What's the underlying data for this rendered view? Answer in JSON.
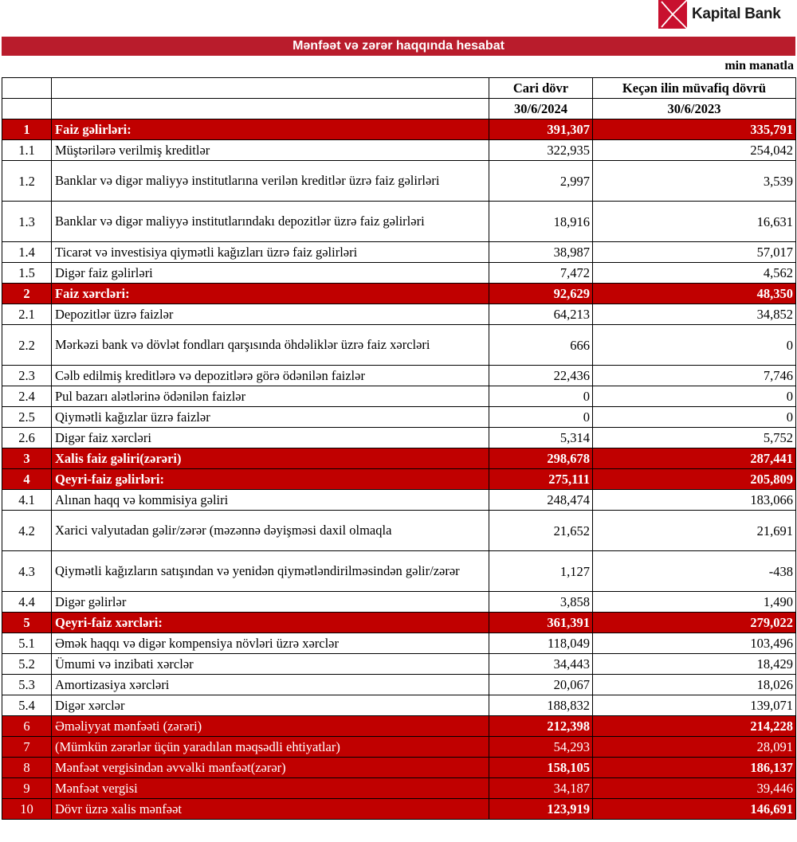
{
  "brand": {
    "name": "Kapital Bank",
    "color": "#c8102e"
  },
  "title": "Mənfəət və zərər haqqında hesabat",
  "unit": "min manatla",
  "columns": {
    "current": "Cari dövr",
    "previous": "Keçən ilin müvafiq dövrü",
    "current_date": "30/6/2024",
    "previous_date": "30/6/2023"
  },
  "colors": {
    "highlight_row": "#c00000",
    "title_bar": "#b91c2c"
  },
  "rows": [
    {
      "no": "1",
      "label": "Faiz gəlirləri:",
      "cur": "391,307",
      "prev": "335,791",
      "type": "section"
    },
    {
      "no": "1.1",
      "label": "Müştərilərə verilmiş kreditlər",
      "cur": "322,935",
      "prev": "254,042"
    },
    {
      "no": "1.2",
      "label": "Banklar və digər maliyyə institutlarına verilən kreditlər üzrə faiz gəlirləri",
      "cur": "2,997",
      "prev": "3,539",
      "double": true
    },
    {
      "no": "1.3",
      "label": "Banklar və digər maliyyə institutlarındakı depozitlər üzrə faiz gəlirləri",
      "cur": "18,916",
      "prev": "16,631",
      "double": true
    },
    {
      "no": "1.4",
      "label": "Ticarət və investisiya qiymətli kağızları üzrə faiz gəlirləri",
      "cur": "38,987",
      "prev": "57,017"
    },
    {
      "no": "1.5",
      "label": "Digər faiz gəlirləri",
      "cur": "7,472",
      "prev": "4,562"
    },
    {
      "no": "2",
      "label": "Faiz xərcləri:",
      "cur": "92,629",
      "prev": "48,350",
      "type": "section"
    },
    {
      "no": "2.1",
      "label": "Depozitlər üzrə faizlər",
      "cur": "64,213",
      "prev": "34,852"
    },
    {
      "no": "2.2",
      "label": "Mərkəzi bank və dövlət fondları qarşısında öhdəliklər üzrə faiz xərcləri",
      "cur": "666",
      "prev": "0",
      "double": true
    },
    {
      "no": "2.3",
      "label": "Cəlb edilmiş kreditlərə və depozitlərə görə ödənilən faizlər",
      "cur": "22,436",
      "prev": "7,746"
    },
    {
      "no": "2.4",
      "label": "Pul bazarı alətlərinə ödənilən faizlər",
      "cur": "0",
      "prev": "0"
    },
    {
      "no": "2.5",
      "label": "Qiymətli kağızlar üzrə faizlər",
      "cur": "0",
      "prev": "0"
    },
    {
      "no": "2.6",
      "label": "Digər faiz xərcləri",
      "cur": "5,314",
      "prev": "5,752"
    },
    {
      "no": "3",
      "label": "Xalis faiz gəliri(zərəri)",
      "cur": "298,678",
      "prev": "287,441",
      "type": "section"
    },
    {
      "no": "4",
      "label": "Qeyri-faiz gəlirləri:",
      "cur": "275,111",
      "prev": "205,809",
      "type": "section"
    },
    {
      "no": "4.1",
      "label": "Alınan haqq və kommisiya gəliri",
      "cur": "248,474",
      "prev": "183,066"
    },
    {
      "no": "4.2",
      "label": "Xarici valyutadan gəlir/zərər (məzənnə dəyişməsi daxil olmaqla",
      "cur": "21,652",
      "prev": "21,691",
      "double": true
    },
    {
      "no": "4.3",
      "label": "Qiymətli kağızların satışından və yenidən qiymətləndirilməsindən gəlir/zərər",
      "cur": "1,127",
      "prev": "-438",
      "double": true
    },
    {
      "no": "4.4",
      "label": "Digər gəlirlər",
      "cur": "3,858",
      "prev": "1,490"
    },
    {
      "no": "5",
      "label": "Qeyri-faiz xərcləri:",
      "cur": "361,391",
      "prev": "279,022",
      "type": "section"
    },
    {
      "no": "5.1",
      "label": "Əmək haqqı və digər kompensiya növləri üzrə xərclər",
      "cur": "118,049",
      "prev": "103,496"
    },
    {
      "no": "5.2",
      "label": "Ümumi və inzibati xərclər",
      "cur": "34,443",
      "prev": "18,429"
    },
    {
      "no": "5.3",
      "label": "Amortizasiya xərcləri",
      "cur": "20,067",
      "prev": "18,026"
    },
    {
      "no": "5.4",
      "label": "Digər xərclər",
      "cur": "188,832",
      "prev": "139,071"
    },
    {
      "no": "6",
      "label": "Əməliyyat mənfəəti (zərəri)",
      "cur": "212,398",
      "prev": "214,228",
      "type": "total",
      "bold_values": true
    },
    {
      "no": "7",
      "label": "(Mümkün zərərlər üçün yaradılan məqsədli ehtiyatlar)",
      "cur": "54,293",
      "prev": "28,091",
      "type": "total"
    },
    {
      "no": "8",
      "label": "Mənfəət vergisindən əvvəlki mənfəət(zərər)",
      "cur": "158,105",
      "prev": "186,137",
      "type": "total",
      "bold_values": true
    },
    {
      "no": "9",
      "label": "Mənfəət vergisi",
      "cur": "34,187",
      "prev": "39,446",
      "type": "total"
    },
    {
      "no": "10",
      "label": "Dövr üzrə xalis mənfəət",
      "cur": "123,919",
      "prev": "146,691",
      "type": "total",
      "bold_values": true
    }
  ]
}
